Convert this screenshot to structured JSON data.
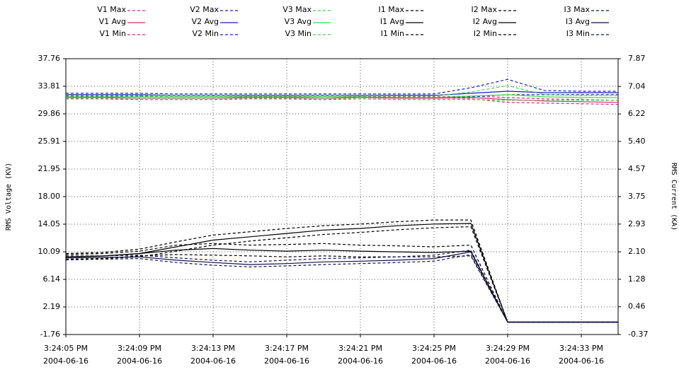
{
  "chart_data": {
    "type": "line",
    "y_label": "RMS Voltage (KV)",
    "y2_label": "RMS Current (KA)",
    "x": [
      "2004-06-16 15:24:05",
      "2004-06-16 15:24:07",
      "2004-06-16 15:24:09",
      "2004-06-16 15:24:11",
      "2004-06-16 15:24:13",
      "2004-06-16 15:24:15",
      "2004-06-16 15:24:17",
      "2004-06-16 15:24:19",
      "2004-06-16 15:24:21",
      "2004-06-16 15:24:23",
      "2004-06-16 15:24:25",
      "2004-06-16 15:24:27",
      "2004-06-16 15:24:29",
      "2004-06-16 15:24:31",
      "2004-06-16 15:24:33",
      "2004-06-16 15:24:35"
    ],
    "xlim": [
      "2004-06-16 15:24:05",
      "2004-06-16 15:24:35"
    ],
    "xticks": [
      {
        "value": "2004-06-16 15:24:05",
        "label": [
          "3:24:05 PM",
          "2004-06-16"
        ]
      },
      {
        "value": "2004-06-16 15:24:09",
        "label": [
          "3:24:09 PM",
          "2004-06-16"
        ]
      },
      {
        "value": "2004-06-16 15:24:13",
        "label": [
          "3:24:13 PM",
          "2004-06-16"
        ]
      },
      {
        "value": "2004-06-16 15:24:17",
        "label": [
          "3:24:17 PM",
          "2004-06-16"
        ]
      },
      {
        "value": "2004-06-16 15:24:21",
        "label": [
          "3:24:21 PM",
          "2004-06-16"
        ]
      },
      {
        "value": "2004-06-16 15:24:25",
        "label": [
          "3:24:25 PM",
          "2004-06-16"
        ]
      },
      {
        "value": "2004-06-16 15:24:29",
        "label": [
          "3:24:29 PM",
          "2004-06-16"
        ]
      },
      {
        "value": "2004-06-16 15:24:33",
        "label": [
          "3:24:33 PM",
          "2004-06-16"
        ]
      }
    ],
    "ylim": [
      -1.76,
      37.76
    ],
    "yticks": [
      37.76,
      33.81,
      29.86,
      25.91,
      21.95,
      {
        "value": 18,
        "label": "18.00"
      },
      14.05,
      10.09,
      6.14,
      2.19,
      -1.76
    ],
    "y2lim": [
      -0.37,
      7.87
    ],
    "y2ticks": [
      7.87,
      7.04,
      6.22,
      {
        "value": 5.4,
        "label": "5.40"
      },
      4.57,
      3.75,
      2.93,
      {
        "value": 2.1,
        "label": "2.10"
      },
      1.28,
      0.46,
      -0.37
    ],
    "grid": true,
    "series": [
      {
        "name": "V1 Max",
        "color": "#e8207c",
        "style": "dashed",
        "values": [
          32.4,
          32.4,
          32.3,
          32.3,
          32.3,
          32.4,
          32.4,
          32.3,
          32.4,
          32.3,
          32.3,
          32.4,
          32.2,
          32.0,
          31.9,
          31.8
        ]
      },
      {
        "name": "V1 Avg",
        "color": "#e8207c",
        "style": "solid",
        "values": [
          32.2,
          32.2,
          32.1,
          32.1,
          32.1,
          32.2,
          32.2,
          32.1,
          32.2,
          32.1,
          32.1,
          32.2,
          31.9,
          31.7,
          31.6,
          31.5
        ]
      },
      {
        "name": "V1 Min",
        "color": "#e8207c",
        "style": "dashed",
        "values": [
          32.0,
          32.0,
          31.9,
          31.9,
          31.9,
          32.0,
          32.0,
          31.9,
          32.0,
          31.9,
          31.9,
          32.0,
          31.5,
          31.4,
          31.3,
          31.2
        ]
      },
      {
        "name": "V2 Max",
        "color": "#1a1acc",
        "style": "dashed",
        "values": [
          32.8,
          32.8,
          32.8,
          32.7,
          32.7,
          32.7,
          32.7,
          32.7,
          32.7,
          32.7,
          32.7,
          33.6,
          34.8,
          33.2,
          33.1,
          33.1
        ]
      },
      {
        "name": "V2 Avg",
        "color": "#1a1acc",
        "style": "solid",
        "values": [
          32.6,
          32.6,
          32.6,
          32.5,
          32.5,
          32.5,
          32.5,
          32.5,
          32.5,
          32.5,
          32.5,
          32.8,
          33.1,
          32.9,
          32.9,
          32.9
        ]
      },
      {
        "name": "V2 Min",
        "color": "#1a1acc",
        "style": "dashed",
        "values": [
          32.4,
          32.4,
          32.4,
          32.3,
          32.3,
          32.3,
          32.3,
          32.3,
          32.3,
          32.2,
          32.2,
          32.3,
          32.6,
          32.6,
          32.6,
          32.6
        ]
      },
      {
        "name": "V3 Max",
        "color": "#3ddc3d",
        "style": "dashed",
        "values": [
          32.5,
          32.5,
          32.5,
          32.5,
          32.5,
          32.5,
          32.5,
          32.5,
          32.5,
          32.4,
          32.4,
          33.0,
          33.9,
          32.6,
          32.5,
          32.5
        ]
      },
      {
        "name": "V3 Avg",
        "color": "#3ddc3d",
        "style": "solid",
        "values": [
          32.3,
          32.3,
          32.3,
          32.3,
          32.3,
          32.3,
          32.3,
          32.3,
          32.3,
          32.2,
          32.2,
          32.4,
          32.6,
          32.3,
          32.2,
          32.2
        ]
      },
      {
        "name": "V3 Min",
        "color": "#3ddc3d",
        "style": "dashed",
        "values": [
          32.1,
          32.1,
          32.1,
          32.1,
          32.1,
          32.1,
          32.1,
          32.1,
          32.0,
          31.9,
          31.9,
          31.9,
          31.8,
          31.8,
          31.8,
          31.8
        ]
      },
      {
        "name": "I1 Max",
        "color": "#000000",
        "style": "dashed",
        "axis": "y2",
        "values": [
          2.05,
          2.08,
          2.18,
          2.4,
          2.6,
          2.7,
          2.8,
          2.88,
          2.93,
          3.0,
          3.05,
          3.05,
          0,
          0,
          0,
          0
        ]
      },
      {
        "name": "I1 Avg",
        "color": "#000000",
        "style": "solid",
        "axis": "y2",
        "values": [
          1.95,
          1.97,
          2.05,
          2.25,
          2.45,
          2.55,
          2.65,
          2.75,
          2.8,
          2.88,
          2.93,
          2.95,
          0,
          0,
          0,
          0
        ]
      },
      {
        "name": "I1 Min",
        "color": "#000000",
        "style": "dashed",
        "axis": "y2",
        "values": [
          1.88,
          1.9,
          1.95,
          2.12,
          2.3,
          2.42,
          2.52,
          2.62,
          2.68,
          2.76,
          2.82,
          2.85,
          0,
          0,
          0,
          0
        ]
      },
      {
        "name": "I2 Max",
        "color": "#000000",
        "style": "dashed",
        "axis": "y2",
        "values": [
          2.02,
          2.05,
          2.12,
          2.3,
          2.35,
          2.3,
          2.32,
          2.35,
          2.3,
          2.28,
          2.25,
          2.3,
          0,
          0,
          0,
          0
        ]
      },
      {
        "name": "I2 Avg",
        "color": "#000000",
        "style": "solid",
        "axis": "y2",
        "values": [
          1.95,
          1.98,
          2.05,
          2.15,
          2.2,
          2.15,
          2.12,
          2.15,
          2.12,
          2.1,
          2.08,
          2.12,
          0,
          0,
          0,
          0
        ]
      },
      {
        "name": "I2 Min",
        "color": "#000000",
        "style": "dashed",
        "axis": "y2",
        "values": [
          1.88,
          1.9,
          1.98,
          2.02,
          2.0,
          1.98,
          1.95,
          1.98,
          1.95,
          1.95,
          1.95,
          1.98,
          0,
          0,
          0,
          0
        ]
      },
      {
        "name": "I3 Max",
        "color": "#10104a",
        "style": "dashed",
        "axis": "y2",
        "values": [
          1.98,
          1.98,
          2.0,
          1.92,
          1.85,
          1.8,
          1.85,
          1.9,
          1.92,
          1.95,
          2.0,
          2.15,
          0,
          0,
          0,
          0
        ]
      },
      {
        "name": "I3 Avg",
        "color": "#10104a",
        "style": "solid",
        "axis": "y2",
        "values": [
          1.92,
          1.93,
          1.95,
          1.85,
          1.78,
          1.72,
          1.75,
          1.8,
          1.82,
          1.85,
          1.9,
          2.1,
          0,
          0,
          0,
          0
        ]
      },
      {
        "name": "I3 Min",
        "color": "#10104a",
        "style": "dashed",
        "axis": "y2",
        "values": [
          1.86,
          1.88,
          1.9,
          1.78,
          1.7,
          1.65,
          1.68,
          1.72,
          1.75,
          1.78,
          1.82,
          2.02,
          0,
          0,
          0,
          0
        ]
      }
    ]
  }
}
